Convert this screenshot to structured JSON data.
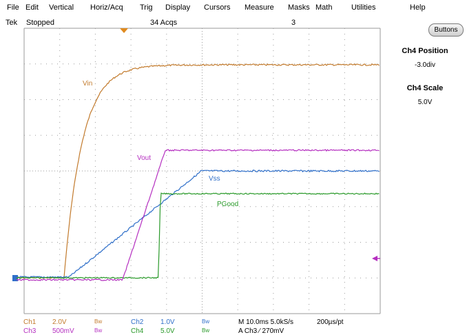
{
  "menu": [
    "File",
    "Edit",
    "Vertical",
    "Horiz/Acq",
    "Trig",
    "Display",
    "Cursors",
    "Measure",
    "Masks",
    "Math",
    "Utilities",
    "Help"
  ],
  "status": {
    "brand": "Tek",
    "state": "Stopped",
    "acqs": "34 Acqs",
    "number": "3"
  },
  "buttons_label": "Buttons",
  "side_panel": {
    "position_label": "Ch4 Position",
    "position_value": "-3.0div",
    "scale_label": "Ch4 Scale",
    "scale_value": "5.0V"
  },
  "trace_labels": {
    "vin": "Vin",
    "vout": "Vout",
    "vss": "Vss",
    "pgood": "PGood"
  },
  "colors": {
    "ch1": "#c27a2c",
    "ch2": "#2f6fc9",
    "ch3": "#b52fc0",
    "ch4": "#2a9a2a",
    "grid": "#9a9a9a"
  },
  "channel_readouts": {
    "ch1": {
      "name": "Ch1",
      "scale": "2.0V",
      "bw": "Bw"
    },
    "ch2": {
      "name": "Ch2",
      "scale": "1.0V",
      "bw": "Bw"
    },
    "ch3": {
      "name": "Ch3",
      "scale": "500mV",
      "bw": "Bw"
    },
    "ch4": {
      "name": "Ch4",
      "scale": "5.0V",
      "bw": "Bw"
    }
  },
  "timebase": {
    "main": "M 10.0ms 5.0kS/s",
    "resolution": "200µs/pt"
  },
  "trigger": {
    "text": "A Ch3 ⁄ 270mV"
  }
}
